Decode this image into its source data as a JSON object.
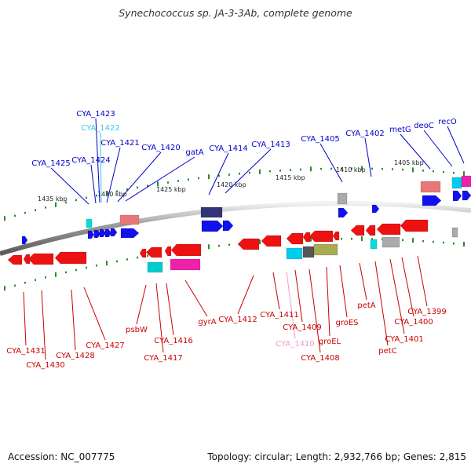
{
  "title": "Synechococcus sp. JA-3-3Ab, complete genome",
  "footer": {
    "accession": "Accession: NC_007775",
    "stats": "Topology: circular; Length: 2,932,766 bp; Genes: 2,815"
  },
  "colors": {
    "forward_label": "#0000cc",
    "reverse_label": "#cc0000",
    "tick": "#2a8a2a",
    "backbone": "#888888",
    "highlight_label": "#33ccee",
    "highlight_label_rev": "#ee99cc"
  },
  "scale_labels": [
    "1435 kbp",
    "1430 kbp",
    "1425 kbp",
    "1420 kbp",
    "1415 kbp",
    "1410 kbp",
    "1405 kbp"
  ],
  "forward_genes": [
    "CYA_1423",
    "CYA_1422",
    "CYA_1421",
    "CYA_1420",
    "gatA",
    "CYA_1425",
    "CYA_1424",
    "CYA_1414",
    "CYA_1413",
    "CYA_1405",
    "CYA_1402",
    "metG",
    "deoC",
    "recO"
  ],
  "reverse_genes": [
    "CYA_1431",
    "CYA_1430",
    "CYA_1428",
    "CYA_1427",
    "psbW",
    "CYA_1416",
    "CYA_1417",
    "gyrA",
    "CYA_1412",
    "CYA_1411",
    "CYA_1409",
    "CYA_1410",
    "CYA_1408",
    "groEL",
    "groES",
    "petA",
    "CYA_1401",
    "petC",
    "CYA_1400",
    "CYA_1399"
  ]
}
